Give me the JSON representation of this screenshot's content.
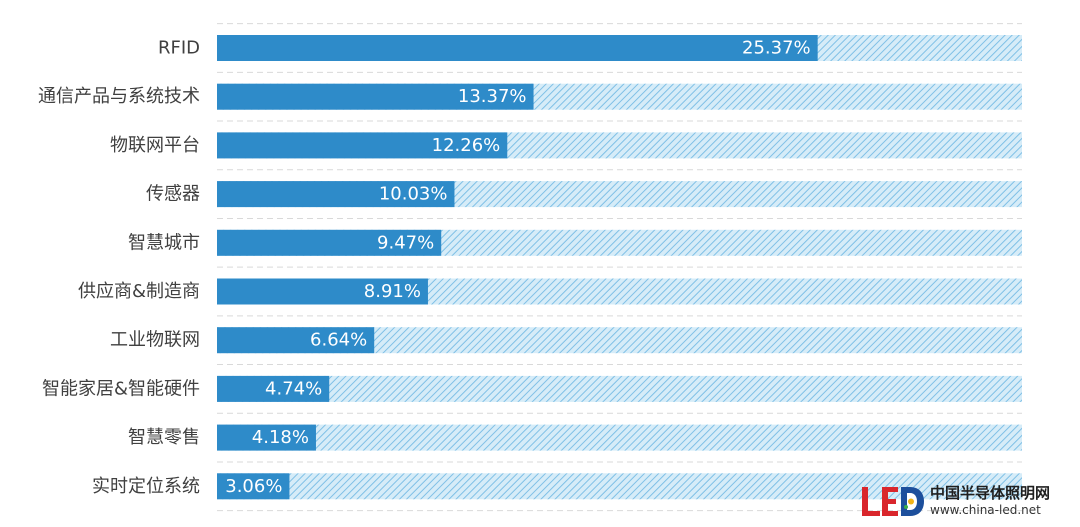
{
  "chart_data": {
    "type": "bar",
    "orientation": "horizontal",
    "categories": [
      "RFID",
      "通信产品与系统技术",
      "物联网平台",
      "传感器",
      "智慧城市",
      "供应商&制造商",
      "工业物联网",
      "智能家居&智能硬件",
      "智慧零售",
      "实时定位系统"
    ],
    "values": [
      25.37,
      13.37,
      12.26,
      10.03,
      9.47,
      8.91,
      6.64,
      4.74,
      4.18,
      3.06
    ],
    "value_labels": [
      "25.37%",
      "13.37%",
      "12.26%",
      "10.03%",
      "9.47%",
      "8.91%",
      "6.64%",
      "4.74%",
      "4.18%",
      "3.06%"
    ],
    "xlim": [
      0,
      34
    ],
    "title": "",
    "xlabel": "",
    "ylabel": "",
    "grid": true,
    "legend": "none",
    "colors": {
      "bar": "#2e8bc9",
      "background_track": "#d6ecf8",
      "hatch": "#7fc0e6"
    }
  },
  "watermark": {
    "logo_text": "LED",
    "name": "中国半导体照明网",
    "url": "www.china-led.net"
  }
}
